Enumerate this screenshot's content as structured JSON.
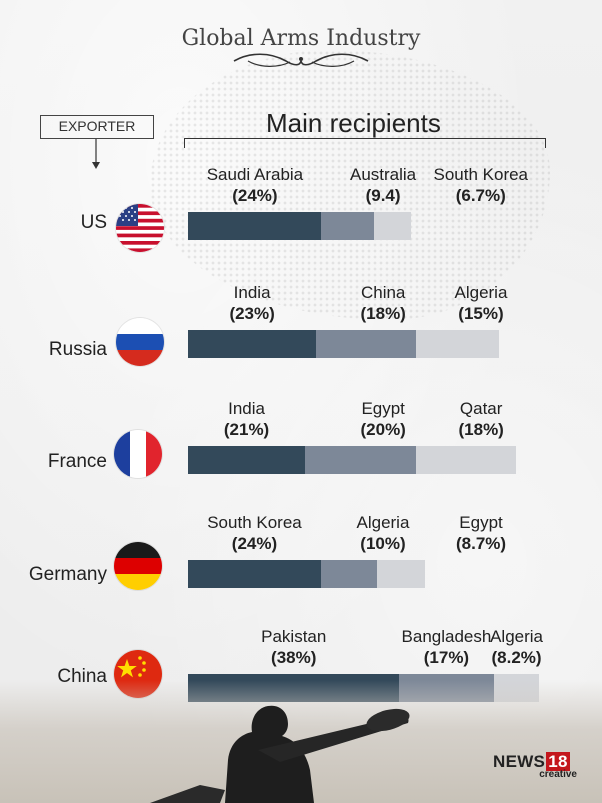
{
  "title": "Global Arms Industry",
  "exporter_label": "EXPORTER",
  "recipients_title": "Main recipients",
  "colors": {
    "primary": "#33495a",
    "secondary": "#7d8898",
    "tertiary": "#d3d5d9"
  },
  "logo": {
    "brand": "NEWS",
    "number": "18",
    "sub": "creative"
  },
  "chart_data": {
    "type": "bar",
    "stacked": true,
    "orientation": "horizontal",
    "title": "Global Arms Industry",
    "categories": [
      "US",
      "Russia",
      "France",
      "Germany",
      "China"
    ],
    "rows": [
      {
        "exporter": "US",
        "flag": "us-flag-icon",
        "recipients": [
          {
            "name": "Saudi Arabia",
            "label": "(24%)",
            "value": 24
          },
          {
            "name": "Australia",
            "label": "(9.4)",
            "value": 9.4
          },
          {
            "name": "South Korea",
            "label": "(6.7%)",
            "value": 6.7
          }
        ]
      },
      {
        "exporter": "Russia",
        "flag": "russia-flag-icon",
        "recipients": [
          {
            "name": "India",
            "label": "(23%)",
            "value": 23
          },
          {
            "name": "China",
            "label": "(18%)",
            "value": 18
          },
          {
            "name": "Algeria",
            "label": "(15%)",
            "value": 15
          }
        ]
      },
      {
        "exporter": "France",
        "flag": "france-flag-icon",
        "recipients": [
          {
            "name": "India",
            "label": "(21%)",
            "value": 21
          },
          {
            "name": "Egypt",
            "label": "(20%)",
            "value": 20
          },
          {
            "name": "Qatar",
            "label": "(18%)",
            "value": 18
          }
        ]
      },
      {
        "exporter": "Germany",
        "flag": "germany-flag-icon",
        "recipients": [
          {
            "name": "South Korea",
            "label": "(24%)",
            "value": 24
          },
          {
            "name": "Algeria",
            "label": "(10%)",
            "value": 10
          },
          {
            "name": "Egypt",
            "label": "(8.7%)",
            "value": 8.7
          }
        ]
      },
      {
        "exporter": "China",
        "flag": "china-flag-icon",
        "recipients": [
          {
            "name": "Pakistan",
            "label": "(38%)",
            "value": 38
          },
          {
            "name": "Bangladesh",
            "label": "(17%)",
            "value": 17
          },
          {
            "name": "Algeria",
            "label": "(8.2%)",
            "value": 8.2
          }
        ]
      }
    ]
  }
}
